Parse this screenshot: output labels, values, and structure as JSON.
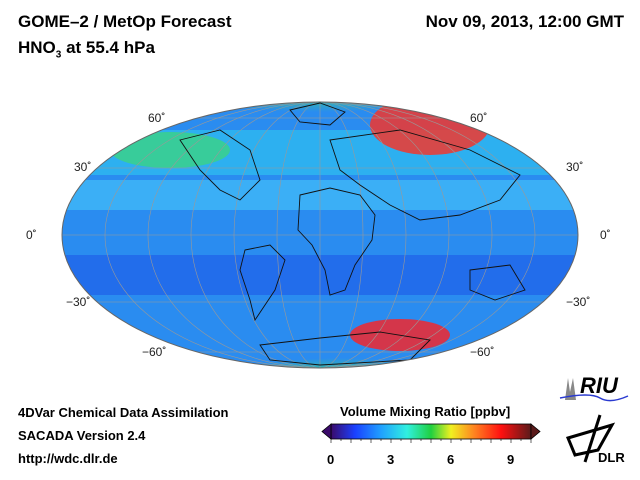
{
  "header": {
    "title": "GOME–2 / MetOp Forecast",
    "species": "HNO",
    "species_sub": "3",
    "level": " at 55.4 hPa",
    "datetime": "Nov 09, 2013, 12:00 GMT"
  },
  "map": {
    "projection": "Mollweide",
    "lat_labels_left": [
      "60˚",
      "30˚",
      "0˚",
      "−30˚",
      "−60˚"
    ],
    "lat_labels_right": [
      "60˚",
      "30˚",
      "0˚",
      "−30˚",
      "−60˚"
    ]
  },
  "footer": {
    "line1": "4DVar Chemical Data Assimilation",
    "line2": "SACADA Version 2.4",
    "line3": "http://wdc.dlr.de"
  },
  "colorbar": {
    "title": "Volume Mixing Ratio [ppbv]",
    "ticks": [
      "0",
      "3",
      "6",
      "9"
    ],
    "min": 0,
    "max": 10,
    "colors": [
      "#3a0a6a",
      "#1a40ff",
      "#20a0ff",
      "#30f0e0",
      "#20d040",
      "#f0f020",
      "#ff8020",
      "#ff1010",
      "#5a1a1a"
    ]
  },
  "logos": {
    "riu": "RIU",
    "dlr": "DLR"
  }
}
